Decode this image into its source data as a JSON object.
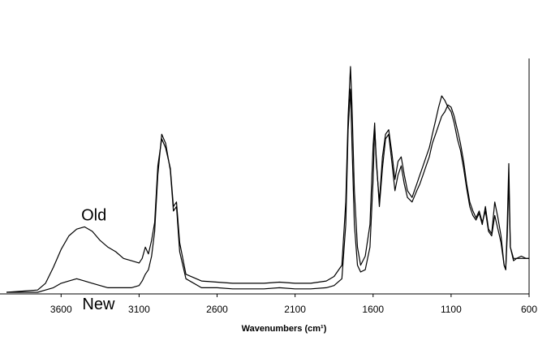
{
  "chart_data": {
    "type": "line",
    "title": "",
    "xlabel": "Wavenumbers (cm¹)",
    "ylabel": "",
    "xlim": [
      3950,
      600
    ],
    "ylim": [
      0,
      1
    ],
    "x_reversed": true,
    "grid": false,
    "legend": "none",
    "x_ticks": [
      "3600",
      "3100",
      "2600",
      "2100",
      "1600",
      "1100",
      "600"
    ],
    "line_color": "#000000",
    "annotations": [
      "Old",
      "New"
    ],
    "series": [
      {
        "name": "Old",
        "points": [
          [
            3950,
            0.0
          ],
          [
            3850,
            0.005
          ],
          [
            3750,
            0.01
          ],
          [
            3700,
            0.04
          ],
          [
            3650,
            0.11
          ],
          [
            3600,
            0.19
          ],
          [
            3550,
            0.25
          ],
          [
            3500,
            0.28
          ],
          [
            3450,
            0.29
          ],
          [
            3400,
            0.27
          ],
          [
            3350,
            0.23
          ],
          [
            3300,
            0.2
          ],
          [
            3250,
            0.18
          ],
          [
            3200,
            0.15
          ],
          [
            3150,
            0.14
          ],
          [
            3100,
            0.13
          ],
          [
            3080,
            0.15
          ],
          [
            3060,
            0.2
          ],
          [
            3040,
            0.17
          ],
          [
            3020,
            0.23
          ],
          [
            3000,
            0.31
          ],
          [
            2980,
            0.56
          ],
          [
            2955,
            0.68
          ],
          [
            2930,
            0.64
          ],
          [
            2900,
            0.55
          ],
          [
            2880,
            0.38
          ],
          [
            2860,
            0.4
          ],
          [
            2840,
            0.22
          ],
          [
            2800,
            0.08
          ],
          [
            2700,
            0.05
          ],
          [
            2600,
            0.045
          ],
          [
            2500,
            0.04
          ],
          [
            2400,
            0.04
          ],
          [
            2300,
            0.04
          ],
          [
            2200,
            0.045
          ],
          [
            2100,
            0.04
          ],
          [
            2000,
            0.04
          ],
          [
            1900,
            0.05
          ],
          [
            1850,
            0.07
          ],
          [
            1800,
            0.12
          ],
          [
            1775,
            0.4
          ],
          [
            1760,
            0.78
          ],
          [
            1745,
            1.0
          ],
          [
            1735,
            0.82
          ],
          [
            1720,
            0.45
          ],
          [
            1700,
            0.2
          ],
          [
            1680,
            0.12
          ],
          [
            1650,
            0.16
          ],
          [
            1620,
            0.3
          ],
          [
            1600,
            0.65
          ],
          [
            1590,
            0.75
          ],
          [
            1580,
            0.58
          ],
          [
            1560,
            0.4
          ],
          [
            1540,
            0.6
          ],
          [
            1520,
            0.7
          ],
          [
            1500,
            0.72
          ],
          [
            1480,
            0.62
          ],
          [
            1460,
            0.5
          ],
          [
            1440,
            0.58
          ],
          [
            1420,
            0.6
          ],
          [
            1400,
            0.52
          ],
          [
            1380,
            0.45
          ],
          [
            1350,
            0.42
          ],
          [
            1320,
            0.48
          ],
          [
            1300,
            0.52
          ],
          [
            1280,
            0.56
          ],
          [
            1260,
            0.6
          ],
          [
            1240,
            0.64
          ],
          [
            1220,
            0.7
          ],
          [
            1200,
            0.76
          ],
          [
            1180,
            0.82
          ],
          [
            1160,
            0.87
          ],
          [
            1140,
            0.85
          ],
          [
            1120,
            0.82
          ],
          [
            1100,
            0.8
          ],
          [
            1080,
            0.75
          ],
          [
            1060,
            0.68
          ],
          [
            1040,
            0.63
          ],
          [
            1020,
            0.55
          ],
          [
            1000,
            0.46
          ],
          [
            980,
            0.38
          ],
          [
            960,
            0.34
          ],
          [
            940,
            0.32
          ],
          [
            920,
            0.35
          ],
          [
            900,
            0.3
          ],
          [
            880,
            0.38
          ],
          [
            860,
            0.28
          ],
          [
            840,
            0.26
          ],
          [
            820,
            0.4
          ],
          [
            800,
            0.33
          ],
          [
            780,
            0.25
          ],
          [
            760,
            0.12
          ],
          [
            750,
            0.1
          ],
          [
            740,
            0.3
          ],
          [
            730,
            0.57
          ],
          [
            720,
            0.2
          ],
          [
            700,
            0.15
          ],
          [
            680,
            0.15
          ],
          [
            650,
            0.16
          ],
          [
            620,
            0.15
          ],
          [
            600,
            0.15
          ]
        ]
      },
      {
        "name": "New",
        "points": [
          [
            3950,
            0.0
          ],
          [
            3850,
            0.0
          ],
          [
            3750,
            0.0
          ],
          [
            3700,
            0.01
          ],
          [
            3650,
            0.02
          ],
          [
            3600,
            0.04
          ],
          [
            3550,
            0.05
          ],
          [
            3500,
            0.06
          ],
          [
            3450,
            0.05
          ],
          [
            3400,
            0.04
          ],
          [
            3350,
            0.03
          ],
          [
            3300,
            0.02
          ],
          [
            3250,
            0.02
          ],
          [
            3200,
            0.02
          ],
          [
            3150,
            0.02
          ],
          [
            3100,
            0.03
          ],
          [
            3080,
            0.05
          ],
          [
            3060,
            0.08
          ],
          [
            3040,
            0.1
          ],
          [
            3020,
            0.16
          ],
          [
            3000,
            0.27
          ],
          [
            2980,
            0.52
          ],
          [
            2955,
            0.7
          ],
          [
            2930,
            0.66
          ],
          [
            2900,
            0.54
          ],
          [
            2880,
            0.36
          ],
          [
            2860,
            0.38
          ],
          [
            2840,
            0.18
          ],
          [
            2800,
            0.06
          ],
          [
            2700,
            0.02
          ],
          [
            2600,
            0.02
          ],
          [
            2500,
            0.015
          ],
          [
            2400,
            0.015
          ],
          [
            2300,
            0.015
          ],
          [
            2200,
            0.02
          ],
          [
            2100,
            0.015
          ],
          [
            2000,
            0.015
          ],
          [
            1900,
            0.02
          ],
          [
            1850,
            0.03
          ],
          [
            1800,
            0.06
          ],
          [
            1775,
            0.3
          ],
          [
            1760,
            0.72
          ],
          [
            1745,
            0.9
          ],
          [
            1735,
            0.65
          ],
          [
            1720,
            0.3
          ],
          [
            1700,
            0.12
          ],
          [
            1680,
            0.09
          ],
          [
            1650,
            0.1
          ],
          [
            1620,
            0.2
          ],
          [
            1600,
            0.5
          ],
          [
            1590,
            0.73
          ],
          [
            1580,
            0.6
          ],
          [
            1560,
            0.38
          ],
          [
            1540,
            0.55
          ],
          [
            1520,
            0.68
          ],
          [
            1500,
            0.7
          ],
          [
            1480,
            0.58
          ],
          [
            1460,
            0.45
          ],
          [
            1440,
            0.52
          ],
          [
            1420,
            0.56
          ],
          [
            1400,
            0.48
          ],
          [
            1380,
            0.42
          ],
          [
            1350,
            0.4
          ],
          [
            1320,
            0.45
          ],
          [
            1300,
            0.48
          ],
          [
            1280,
            0.52
          ],
          [
            1260,
            0.56
          ],
          [
            1240,
            0.6
          ],
          [
            1220,
            0.66
          ],
          [
            1200,
            0.7
          ],
          [
            1180,
            0.74
          ],
          [
            1160,
            0.78
          ],
          [
            1140,
            0.8
          ],
          [
            1120,
            0.83
          ],
          [
            1100,
            0.82
          ],
          [
            1080,
            0.78
          ],
          [
            1060,
            0.72
          ],
          [
            1040,
            0.66
          ],
          [
            1020,
            0.58
          ],
          [
            1000,
            0.48
          ],
          [
            980,
            0.4
          ],
          [
            960,
            0.36
          ],
          [
            940,
            0.33
          ],
          [
            920,
            0.36
          ],
          [
            900,
            0.31
          ],
          [
            880,
            0.36
          ],
          [
            860,
            0.27
          ],
          [
            840,
            0.25
          ],
          [
            820,
            0.34
          ],
          [
            800,
            0.28
          ],
          [
            780,
            0.22
          ],
          [
            760,
            0.12
          ],
          [
            750,
            0.1
          ],
          [
            740,
            0.25
          ],
          [
            730,
            0.5
          ],
          [
            720,
            0.2
          ],
          [
            700,
            0.14
          ],
          [
            680,
            0.15
          ],
          [
            650,
            0.15
          ],
          [
            620,
            0.15
          ],
          [
            600,
            0.15
          ]
        ]
      }
    ]
  }
}
